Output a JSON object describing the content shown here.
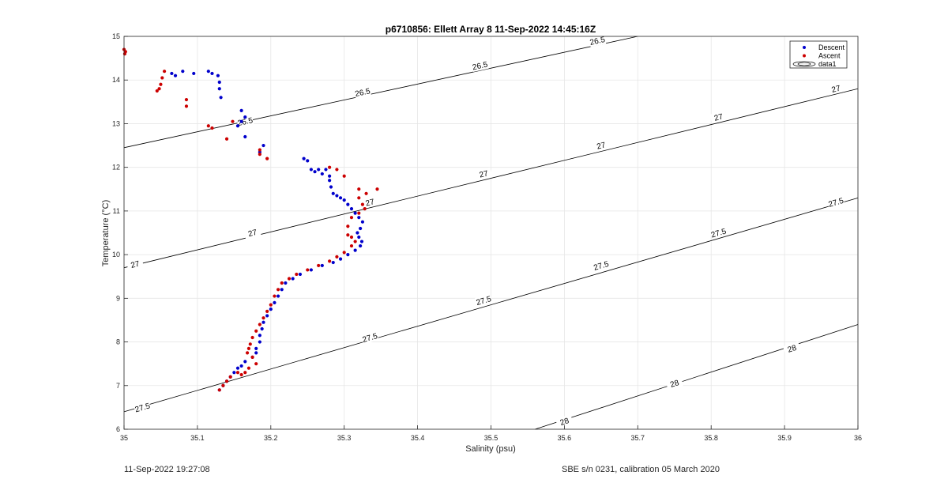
{
  "chart_data": {
    "type": "scatter",
    "title": "p6710856: Ellett Array 8 11-Sep-2022 14:45:16Z",
    "xlabel": "Salinity (psu)",
    "ylabel": "Temperature (°C)",
    "xlim": [
      35,
      36
    ],
    "ylim": [
      6,
      15
    ],
    "xticks": [
      "35",
      "35.1",
      "35.2",
      "35.3",
      "35.4",
      "35.5",
      "35.6",
      "35.7",
      "35.8",
      "35.9",
      "36"
    ],
    "yticks": [
      "6",
      "7",
      "8",
      "9",
      "10",
      "11",
      "12",
      "13",
      "14",
      "15"
    ],
    "grid": true,
    "legend_position": "top-right",
    "legend": [
      "Descent",
      "Ascent",
      "data1"
    ],
    "series": [
      {
        "name": "Descent",
        "color": "#0000cc",
        "points": [
          [
            35.065,
            14.15
          ],
          [
            35.07,
            14.1
          ],
          [
            35.08,
            14.2
          ],
          [
            35.095,
            14.15
          ],
          [
            35.115,
            14.2
          ],
          [
            35.12,
            14.15
          ],
          [
            35.128,
            14.1
          ],
          [
            35.13,
            13.95
          ],
          [
            35.13,
            13.8
          ],
          [
            35.132,
            13.6
          ],
          [
            35.16,
            13.3
          ],
          [
            35.165,
            13.15
          ],
          [
            35.16,
            13.05
          ],
          [
            35.155,
            12.95
          ],
          [
            35.165,
            12.7
          ],
          [
            35.19,
            12.5
          ],
          [
            35.185,
            12.35
          ],
          [
            35.245,
            12.2
          ],
          [
            35.25,
            12.15
          ],
          [
            35.255,
            11.95
          ],
          [
            35.26,
            11.9
          ],
          [
            35.265,
            11.95
          ],
          [
            35.27,
            11.85
          ],
          [
            35.275,
            11.95
          ],
          [
            35.28,
            11.8
          ],
          [
            35.28,
            11.7
          ],
          [
            35.282,
            11.55
          ],
          [
            35.285,
            11.4
          ],
          [
            35.29,
            11.35
          ],
          [
            35.295,
            11.3
          ],
          [
            35.3,
            11.25
          ],
          [
            35.305,
            11.15
          ],
          [
            35.31,
            11.05
          ],
          [
            35.315,
            10.95
          ],
          [
            35.32,
            10.85
          ],
          [
            35.325,
            10.75
          ],
          [
            35.322,
            10.6
          ],
          [
            35.318,
            10.5
          ],
          [
            35.32,
            10.4
          ],
          [
            35.324,
            10.3
          ],
          [
            35.322,
            10.2
          ],
          [
            35.315,
            10.1
          ],
          [
            35.305,
            10.0
          ],
          [
            35.295,
            9.9
          ],
          [
            35.285,
            9.82
          ],
          [
            35.27,
            9.75
          ],
          [
            35.255,
            9.65
          ],
          [
            35.24,
            9.55
          ],
          [
            35.23,
            9.45
          ],
          [
            35.22,
            9.35
          ],
          [
            35.215,
            9.2
          ],
          [
            35.21,
            9.05
          ],
          [
            35.205,
            8.9
          ],
          [
            35.2,
            8.75
          ],
          [
            35.195,
            8.6
          ],
          [
            35.19,
            8.45
          ],
          [
            35.188,
            8.3
          ],
          [
            35.185,
            8.15
          ],
          [
            35.185,
            8.0
          ],
          [
            35.18,
            7.85
          ],
          [
            35.18,
            7.75
          ],
          [
            35.175,
            7.65
          ],
          [
            35.165,
            7.55
          ],
          [
            35.16,
            7.45
          ],
          [
            35.155,
            7.4
          ],
          [
            35.15,
            7.3
          ],
          [
            35.145,
            7.2
          ],
          [
            35.14,
            7.1
          ],
          [
            35.135,
            7.0
          ],
          [
            35.13,
            6.9
          ]
        ]
      },
      {
        "name": "Ascent",
        "color": "#cc0000",
        "points": [
          [
            35.0,
            14.7
          ],
          [
            35.002,
            14.65
          ],
          [
            35.001,
            14.6
          ],
          [
            35.055,
            14.2
          ],
          [
            35.052,
            14.05
          ],
          [
            35.05,
            13.9
          ],
          [
            35.048,
            13.8
          ],
          [
            35.045,
            13.75
          ],
          [
            35.085,
            13.55
          ],
          [
            35.085,
            13.4
          ],
          [
            35.115,
            12.95
          ],
          [
            35.12,
            12.9
          ],
          [
            35.148,
            13.05
          ],
          [
            35.14,
            12.65
          ],
          [
            35.185,
            12.4
          ],
          [
            35.195,
            12.2
          ],
          [
            35.185,
            12.3
          ],
          [
            35.28,
            12.0
          ],
          [
            35.29,
            11.95
          ],
          [
            35.3,
            11.8
          ],
          [
            35.32,
            11.5
          ],
          [
            35.345,
            11.5
          ],
          [
            35.33,
            11.4
          ],
          [
            35.32,
            11.3
          ],
          [
            35.325,
            11.15
          ],
          [
            35.328,
            11.05
          ],
          [
            35.32,
            10.95
          ],
          [
            35.31,
            10.85
          ],
          [
            35.305,
            10.65
          ],
          [
            35.305,
            10.45
          ],
          [
            35.31,
            10.4
          ],
          [
            35.315,
            10.3
          ],
          [
            35.31,
            10.2
          ],
          [
            35.3,
            10.05
          ],
          [
            35.29,
            9.95
          ],
          [
            35.28,
            9.85
          ],
          [
            35.265,
            9.75
          ],
          [
            35.25,
            9.65
          ],
          [
            35.235,
            9.55
          ],
          [
            35.225,
            9.45
          ],
          [
            35.215,
            9.35
          ],
          [
            35.21,
            9.2
          ],
          [
            35.205,
            9.05
          ],
          [
            35.2,
            8.85
          ],
          [
            35.195,
            8.7
          ],
          [
            35.19,
            8.55
          ],
          [
            35.185,
            8.4
          ],
          [
            35.18,
            8.25
          ],
          [
            35.175,
            8.1
          ],
          [
            35.172,
            7.95
          ],
          [
            35.17,
            7.85
          ],
          [
            35.168,
            7.75
          ],
          [
            35.175,
            7.65
          ],
          [
            35.18,
            7.5
          ],
          [
            35.17,
            7.4
          ],
          [
            35.165,
            7.3
          ],
          [
            35.16,
            7.25
          ],
          [
            35.155,
            7.3
          ],
          [
            35.145,
            7.2
          ],
          [
            35.14,
            7.1
          ],
          [
            35.135,
            7.0
          ],
          [
            35.13,
            6.9
          ]
        ]
      },
      {
        "name": "data1",
        "type": "contour",
        "color": "#000000",
        "lines": [
          {
            "level": "26.5",
            "points": [
              [
                35.0,
                12.45
              ],
              [
                35.7,
                15.0
              ]
            ],
            "labels": [
              [
                35.165,
                13.05
              ],
              [
                35.325,
                13.72
              ],
              [
                35.485,
                14.33
              ],
              [
                35.645,
                14.9
              ]
            ]
          },
          {
            "level": "27",
            "points": [
              [
                35.0,
                9.7
              ],
              [
                36.0,
                13.8
              ]
            ],
            "labels": [
              [
                35.015,
                9.78
              ],
              [
                35.175,
                10.5
              ],
              [
                35.335,
                11.2
              ],
              [
                35.49,
                11.85
              ],
              [
                35.65,
                12.5
              ],
              [
                35.81,
                13.15
              ],
              [
                35.97,
                13.8
              ]
            ]
          },
          {
            "level": "27.5",
            "points": [
              [
                35.0,
                6.4
              ],
              [
                36.0,
                11.3
              ]
            ],
            "labels": [
              [
                35.025,
                6.5
              ],
              [
                35.335,
                8.1
              ],
              [
                35.49,
                8.95
              ],
              [
                35.65,
                9.75
              ],
              [
                35.81,
                10.5
              ],
              [
                35.97,
                11.2
              ]
            ]
          },
          {
            "level": "28",
            "points": [
              [
                35.56,
                6.0
              ],
              [
                36.0,
                8.4
              ]
            ],
            "labels": [
              [
                35.6,
                6.18
              ],
              [
                35.75,
                7.05
              ],
              [
                35.91,
                7.85
              ]
            ]
          }
        ]
      }
    ]
  },
  "footer": {
    "timestamp": "11-Sep-2022 19:27:08",
    "calibration": "SBE s/n 0231, calibration 05 March 2020"
  }
}
